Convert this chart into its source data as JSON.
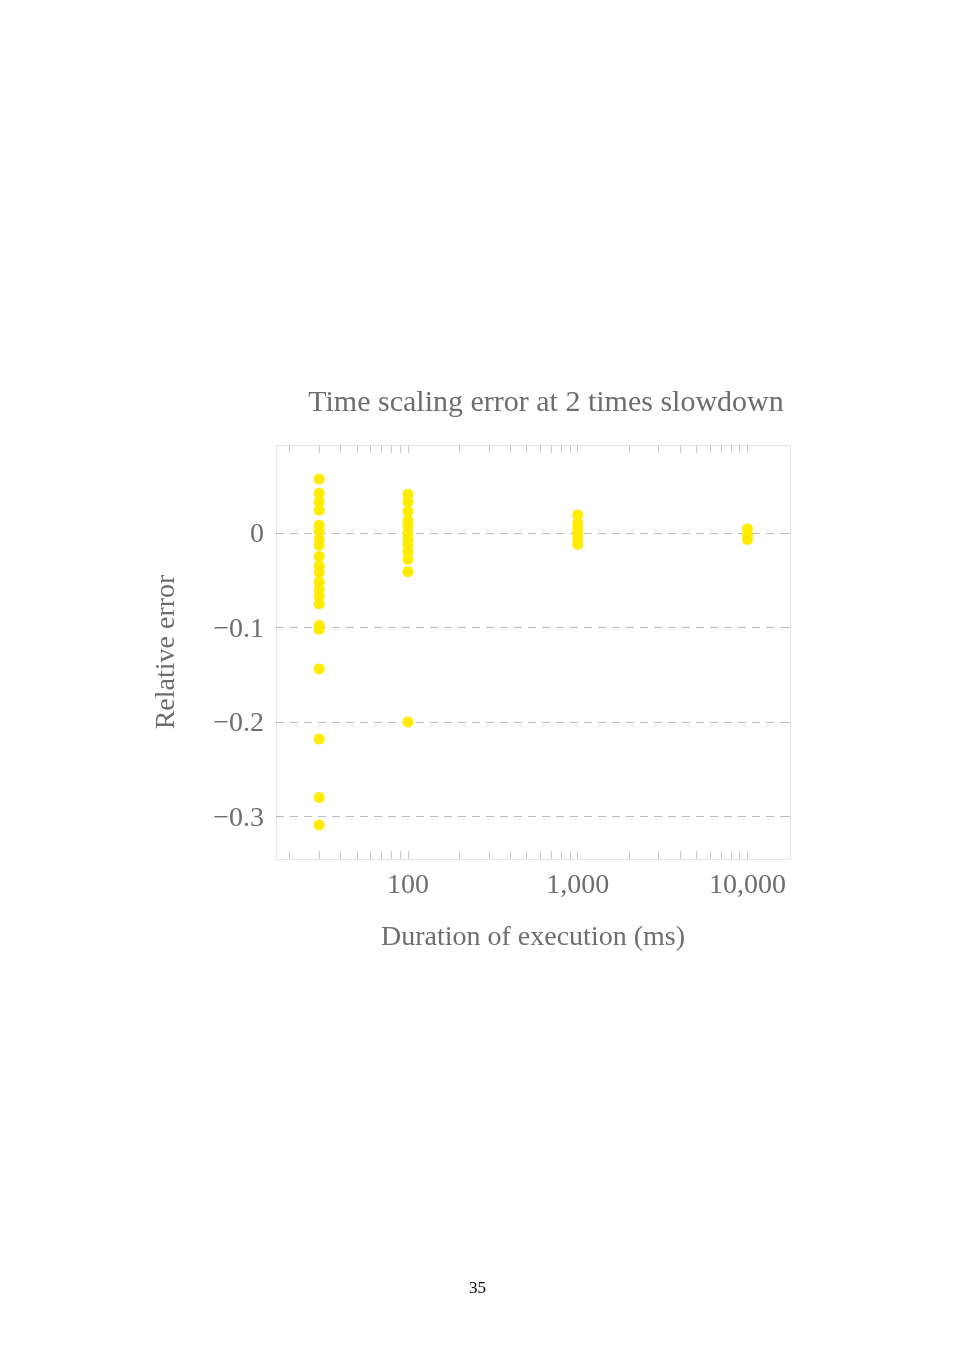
{
  "chart_data": {
    "type": "scatter",
    "title": "Time scaling error at 2 times slowdown",
    "xlabel": "Duration of execution (ms)",
    "ylabel": "Relative error",
    "annotations": [
      "35"
    ],
    "log": "x",
    "grid": "y",
    "marker": "circle",
    "xlim": [
      16.7,
      17800
    ],
    "ylim": [
      -0.345,
      0.093
    ],
    "xticks": [
      {
        "value": 20,
        "label": null
      },
      {
        "value": 30,
        "label": null
      },
      {
        "value": 40,
        "label": null
      },
      {
        "value": 50,
        "label": null
      },
      {
        "value": 60,
        "label": null
      },
      {
        "value": 70,
        "label": null
      },
      {
        "value": 80,
        "label": null
      },
      {
        "value": 90,
        "label": null
      },
      {
        "value": 100,
        "label": "100"
      },
      {
        "value": 200,
        "label": null
      },
      {
        "value": 300,
        "label": null
      },
      {
        "value": 400,
        "label": null
      },
      {
        "value": 500,
        "label": null
      },
      {
        "value": 600,
        "label": null
      },
      {
        "value": 700,
        "label": null
      },
      {
        "value": 800,
        "label": null
      },
      {
        "value": 900,
        "label": null
      },
      {
        "value": 1000,
        "label": "1,000"
      },
      {
        "value": 2000,
        "label": null
      },
      {
        "value": 3000,
        "label": null
      },
      {
        "value": 4000,
        "label": null
      },
      {
        "value": 5000,
        "label": null
      },
      {
        "value": 6000,
        "label": null
      },
      {
        "value": 7000,
        "label": null
      },
      {
        "value": 8000,
        "label": null
      },
      {
        "value": 9000,
        "label": null
      },
      {
        "value": 10000,
        "label": "10,000"
      }
    ],
    "yticks": [
      0,
      {
        "value": -0.1,
        "label": "−0.1"
      },
      {
        "value": -0.2,
        "label": "−0.2"
      },
      {
        "value": -0.3,
        "label": "−0.3"
      }
    ],
    "series": [
      {
        "color": "#ffec00",
        "x": [
          30,
          30,
          30,
          30,
          30,
          30,
          30,
          30,
          30,
          30,
          30,
          30,
          30,
          30,
          30,
          30,
          30,
          30,
          30,
          30,
          30,
          100,
          100,
          100,
          100,
          100,
          100,
          100,
          100,
          100,
          100,
          100,
          100,
          1000,
          1000,
          1000,
          1000,
          1000,
          1000,
          10000,
          10000,
          10000
        ],
        "values": [
          0.057,
          0.042,
          0.033,
          0.024,
          0.008,
          0.002,
          -0.007,
          -0.013,
          -0.025,
          -0.035,
          -0.042,
          -0.052,
          -0.06,
          -0.067,
          -0.075,
          -0.098,
          -0.102,
          -0.144,
          -0.218,
          -0.28,
          -0.309,
          0.041,
          0.033,
          0.023,
          0.013,
          0.007,
          0,
          -0.007,
          -0.013,
          -0.02,
          -0.028,
          -0.041,
          -0.2,
          0.019,
          0.01,
          0.005,
          0,
          -0.005,
          -0.012,
          0.004,
          -0.002,
          -0.007
        ]
      }
    ]
  }
}
